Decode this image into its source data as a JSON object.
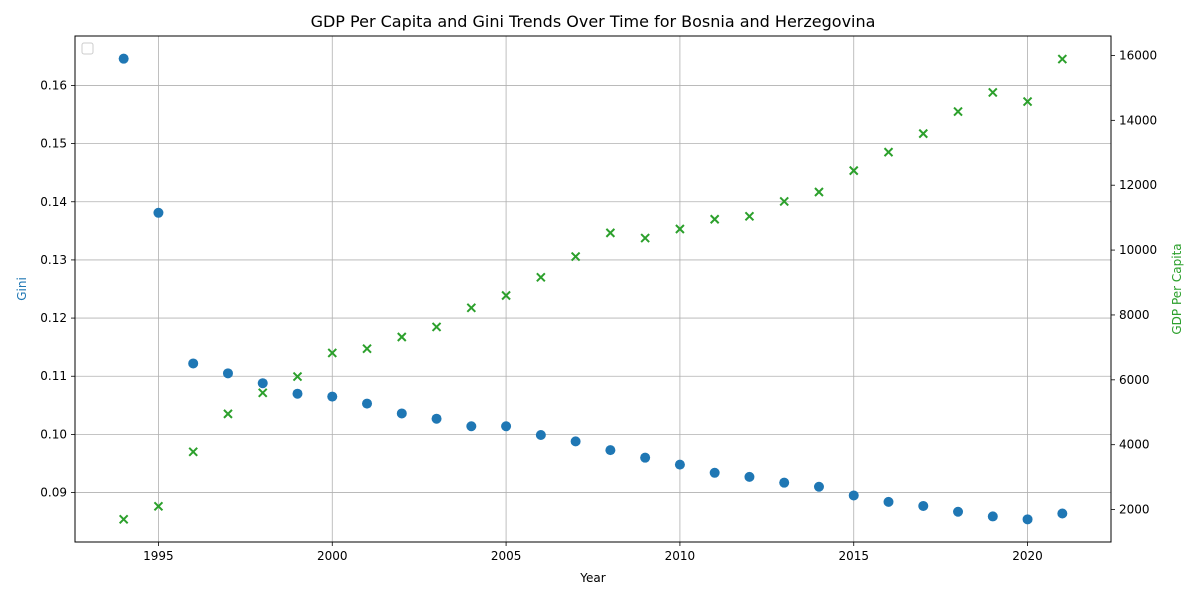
{
  "chart_data": {
    "type": "scatter",
    "title": "GDP Per Capita and Gini Trends Over Time for Bosnia and Herzegovina",
    "xlabel": "Year",
    "ylabel_left": "Gini",
    "ylabel_right": "GDP Per Capita",
    "xlim": [
      1992.6,
      2022.4
    ],
    "ylim_left": [
      0.0815,
      0.1685
    ],
    "ylim_right": [
      1000,
      16600
    ],
    "x_ticks": [
      1995,
      2000,
      2005,
      2010,
      2015,
      2020
    ],
    "y_left_ticks": [
      0.09,
      0.1,
      0.11,
      0.12,
      0.13,
      0.14,
      0.15,
      0.16
    ],
    "y_left_tick_labels": [
      "0.09",
      "0.10",
      "0.11",
      "0.12",
      "0.13",
      "0.14",
      "0.15",
      "0.16"
    ],
    "y_right_ticks": [
      2000,
      4000,
      6000,
      8000,
      10000,
      12000,
      14000,
      16000
    ],
    "grid": true,
    "legend": "top-left (empty)",
    "colors": {
      "gini": "#1f77b4",
      "gdp": "#2ca02c"
    },
    "series": [
      {
        "name": "Gini",
        "axis": "left",
        "marker": "circle",
        "x": [
          1994,
          1995,
          1996,
          1997,
          1998,
          1999,
          2000,
          2001,
          2002,
          2003,
          2004,
          2005,
          2006,
          2007,
          2008,
          2009,
          2010,
          2011,
          2012,
          2013,
          2014,
          2015,
          2016,
          2017,
          2018,
          2019,
          2020,
          2021
        ],
        "y": [
          0.1646,
          0.1381,
          0.1122,
          0.1105,
          0.1088,
          0.107,
          0.1065,
          0.1053,
          0.1036,
          0.1027,
          0.1014,
          0.1014,
          0.0999,
          0.0988,
          0.0973,
          0.096,
          0.0948,
          0.0934,
          0.0927,
          0.0917,
          0.091,
          0.0895,
          0.0884,
          0.0877,
          0.0867,
          0.0859,
          0.0854,
          0.0864
        ]
      },
      {
        "name": "GDP Per Capita",
        "axis": "right",
        "marker": "x",
        "x": [
          1994,
          1995,
          1996,
          1997,
          1998,
          1999,
          2000,
          2001,
          2002,
          2003,
          2004,
          2005,
          2006,
          2007,
          2008,
          2009,
          2010,
          2011,
          2012,
          2013,
          2014,
          2015,
          2016,
          2017,
          2018,
          2019,
          2020,
          2021
        ],
        "y": [
          1700,
          2100,
          3780,
          4950,
          5600,
          6100,
          6830,
          6960,
          7320,
          7630,
          8220,
          8600,
          9160,
          9800,
          10530,
          10370,
          10650,
          10950,
          11040,
          11500,
          11790,
          12450,
          13020,
          13590,
          14270,
          14860,
          14580,
          15890
        ]
      }
    ]
  }
}
